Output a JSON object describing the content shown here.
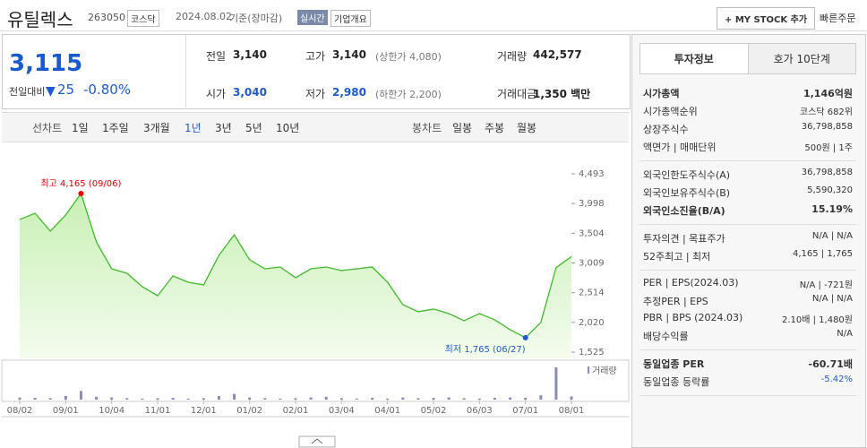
{
  "header": {
    "name": "유틸렉스",
    "code": "263050",
    "market": "코스닥",
    "date": "2024.08.02",
    "basis": "기준(장마감)",
    "badge": "실시간",
    "company_info": "기업개요",
    "my_stock": "+ MY STOCK 추가",
    "quick_order": "빠른주문"
  },
  "price": {
    "current": "3,115",
    "change_label": "전일대비",
    "change": "25",
    "rate": "-0.80%"
  },
  "summary": [
    [
      {
        "label": "전일",
        "value": "3,140"
      },
      {
        "label": "고가",
        "value": "3,140",
        "extra": "(상한가 4,080)"
      },
      {
        "label": "거래량",
        "value": "442,577"
      }
    ],
    [
      {
        "label": "시가",
        "value": "3,040",
        "down": true
      },
      {
        "label": "저가",
        "value": "2,980",
        "down": true,
        "extra": "(하한가 2,200)"
      },
      {
        "label": "거래대금",
        "value": "1,350 백만"
      }
    ]
  ],
  "tabs": {
    "line_label": "선차트",
    "line": [
      "1일",
      "1주일",
      "3개월",
      "1년",
      "3년",
      "5년",
      "10년"
    ],
    "selected": 3,
    "candle_label": "봉차트",
    "candle": [
      "일봉",
      "주봉",
      "월봉"
    ]
  },
  "chart_data": {
    "type": "line",
    "color": "#3fba2b",
    "categories": [
      "08/02",
      null,
      null,
      "09/01",
      null,
      null,
      "10/04",
      null,
      null,
      "11/01",
      null,
      null,
      "12/01",
      null,
      null,
      "01/02",
      null,
      null,
      "02/01",
      null,
      null,
      "03/04",
      null,
      null,
      "04/01",
      null,
      null,
      "05/02",
      null,
      null,
      "06/03",
      null,
      null,
      "07/01",
      null,
      null,
      "08/01"
    ],
    "series": [
      {
        "color": "#3fba2b",
        "values": [
          3733,
          3837,
          3539,
          3807,
          4165,
          3360,
          2912,
          2838,
          2614,
          2465,
          2793,
          2689,
          2644,
          3136,
          3479,
          3062,
          2912,
          2942,
          2764,
          2912,
          2942,
          2883,
          2912,
          2942,
          2689,
          2316,
          2197,
          2242,
          2167,
          2048,
          2167,
          2063,
          1899,
          1765,
          2018,
          2932,
          3115
        ]
      },
      {
        "name": "거래량",
        "color": "#8a8ab8",
        "axis": "y2",
        "values": [
          300000,
          250000,
          200000,
          500000,
          1200000,
          400000,
          300000,
          200000,
          150000,
          200000,
          250000,
          150000,
          200000,
          500000,
          800000,
          300000,
          200000,
          150000,
          200000,
          300000,
          400000,
          200000,
          150000,
          250000,
          150000,
          300000,
          200000,
          250000,
          300000,
          200000,
          150000,
          250000,
          300000,
          250000,
          600000,
          4500000,
          442577
        ]
      }
    ],
    "ylim": [
      1525,
      4493
    ],
    "yticks": [
      {
        "value": 1525,
        "label": "1,525"
      },
      {
        "value": 2020,
        "label": "2,020"
      },
      {
        "value": 2514,
        "label": "2,514"
      },
      {
        "value": 3009,
        "label": "3,009"
      },
      {
        "value": 3504,
        "label": "3,504"
      },
      {
        "value": 3998,
        "label": "3,998"
      },
      {
        "value": 4493,
        "label": "4,493"
      }
    ],
    "y2lim": [
      0,
      5000000
    ],
    "annotations": [
      {
        "text": "최고 4,165 (09/06)",
        "index": 4
      },
      {
        "text": "최저 1,765 (06/27)",
        "index": 33
      }
    ]
  },
  "invest": {
    "tabs": [
      "투자정보",
      "호가 10단계"
    ],
    "groups": [
      [
        {
          "label": "시가총액",
          "value": "1,146억원",
          "bold": true
        },
        {
          "label": "시가총액순위",
          "value": "코스닥 682위"
        },
        {
          "label": "상장주식수",
          "value": "36,798,858"
        },
        {
          "label": "액면가 | 매매단위",
          "value": "500원 | 1주"
        }
      ],
      [
        {
          "label": "외국인한도주식수(A)",
          "value": "36,798,858"
        },
        {
          "label": "외국인보유주식수(B)",
          "value": "5,590,320"
        },
        {
          "label": "외국인소진율(B/A)",
          "value": "15.19%",
          "bold": true
        }
      ],
      [
        {
          "label": "투자의견 | 목표주가",
          "value": "N/A | N/A"
        },
        {
          "label": "52주최고 | 최저",
          "value": "4,165 | 1,765"
        }
      ],
      [
        {
          "label": "PER | EPS(2024.03)",
          "value": "N/A | -721원"
        },
        {
          "label": "추정PER | EPS",
          "value": "N/A | N/A"
        },
        {
          "label": "PBR | BPS (2024.03)",
          "value": "2.10배 | 1,480원"
        },
        {
          "label": "배당수익률",
          "value": "N/A"
        }
      ],
      [
        {
          "label": "동일업종 PER",
          "value": "-60.71배",
          "bold": true
        },
        {
          "label": "동일업종 등락률",
          "value": "-5.42%",
          "down": true
        }
      ]
    ]
  }
}
